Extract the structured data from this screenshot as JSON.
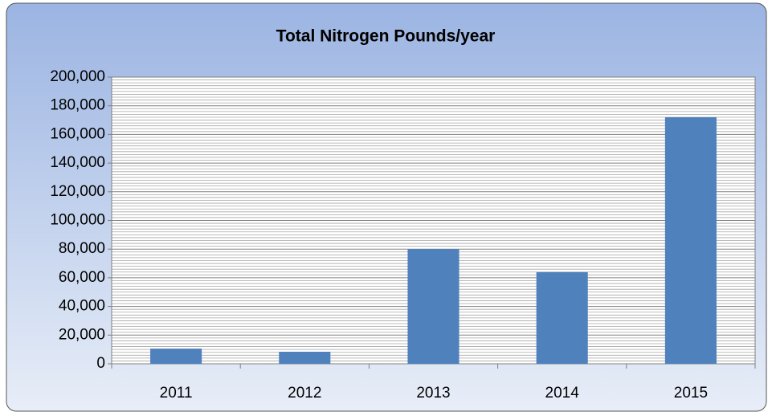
{
  "chart_data": {
    "type": "bar",
    "title": "Total Nitrogen Pounds/year",
    "categories": [
      "2011",
      "2012",
      "2013",
      "2014",
      "2015"
    ],
    "values": [
      10600,
      8400,
      80000,
      63900,
      172000
    ],
    "color": "#4f81bd",
    "ylim": [
      0,
      200000
    ],
    "yticks": [
      0,
      {
        "value": 20000,
        "label": "20,000"
      },
      {
        "value": 40000,
        "label": "40,000"
      },
      {
        "value": 60000,
        "label": "60,000"
      },
      {
        "value": 80000,
        "label": "80,000"
      },
      {
        "value": 100000,
        "label": "100,000"
      },
      {
        "value": 120000,
        "label": "120,000"
      },
      {
        "value": 140000,
        "label": "140,000"
      },
      {
        "value": 160000,
        "label": "160,000"
      },
      {
        "value": 180000,
        "label": "180,000"
      },
      {
        "value": 200000,
        "label": "200,000"
      }
    ],
    "grid": true,
    "minor_grid_per_major": 10
  }
}
